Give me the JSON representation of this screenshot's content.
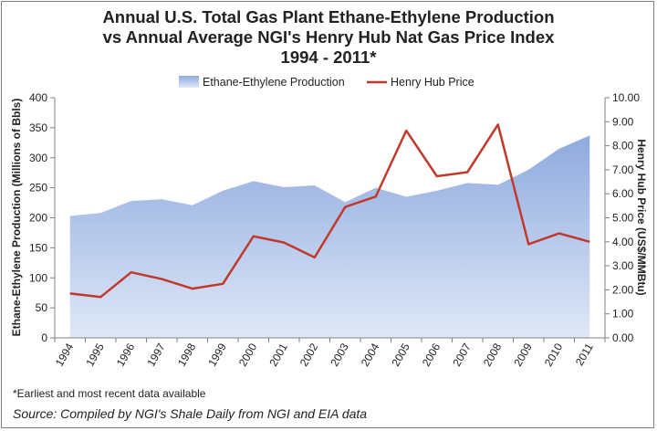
{
  "chart_data": {
    "type": "area+line",
    "title_lines": [
      "Annual U.S. Total Gas Plant Ethane-Ethylene Production",
      "vs Annual Average NGI's Henry Hub Nat Gas Price Index",
      "1994 - 2011*"
    ],
    "categories": [
      "1994",
      "1995",
      "1996",
      "1997",
      "1998",
      "1999",
      "2000",
      "2001",
      "2002",
      "2003",
      "2004",
      "2005",
      "2006",
      "2007",
      "2008",
      "2009",
      "2010",
      "2011"
    ],
    "series": [
      {
        "name": "Ethane-Ethylene Production",
        "kind": "area",
        "axis": "left",
        "color": "#9bb3e1",
        "values": [
          203,
          208,
          228,
          231,
          221,
          245,
          261,
          251,
          254,
          226,
          250,
          235,
          245,
          258,
          255,
          280,
          315,
          337
        ]
      },
      {
        "name": "Henry Hub Price",
        "kind": "line",
        "axis": "right",
        "color": "#c0392b",
        "values": [
          1.85,
          1.7,
          2.73,
          2.45,
          2.05,
          2.25,
          4.23,
          3.97,
          3.35,
          5.45,
          5.88,
          8.63,
          6.73,
          6.9,
          8.88,
          3.9,
          4.35,
          4.0
        ]
      }
    ],
    "y_left": {
      "label": "Ethane-Ethylene Production (Millions of Bbls)",
      "ylim": [
        0,
        400
      ],
      "ticks": [
        "0",
        "50",
        "100",
        "150",
        "200",
        "250",
        "300",
        "350",
        "400"
      ]
    },
    "y_right": {
      "label": "Henry Hub Price (US$/MMBtu)",
      "ylim": [
        0,
        10
      ],
      "ticks": [
        "0.00",
        "1.00",
        "2.00",
        "3.00",
        "4.00",
        "5.00",
        "6.00",
        "7.00",
        "8.00",
        "9.00",
        "10.00"
      ]
    },
    "grid": false,
    "legend_position": "top-center"
  },
  "footnote": "*Earliest and most recent data available",
  "source": "Source:  Compiled by NGI's Shale Daily from NGI and EIA data"
}
